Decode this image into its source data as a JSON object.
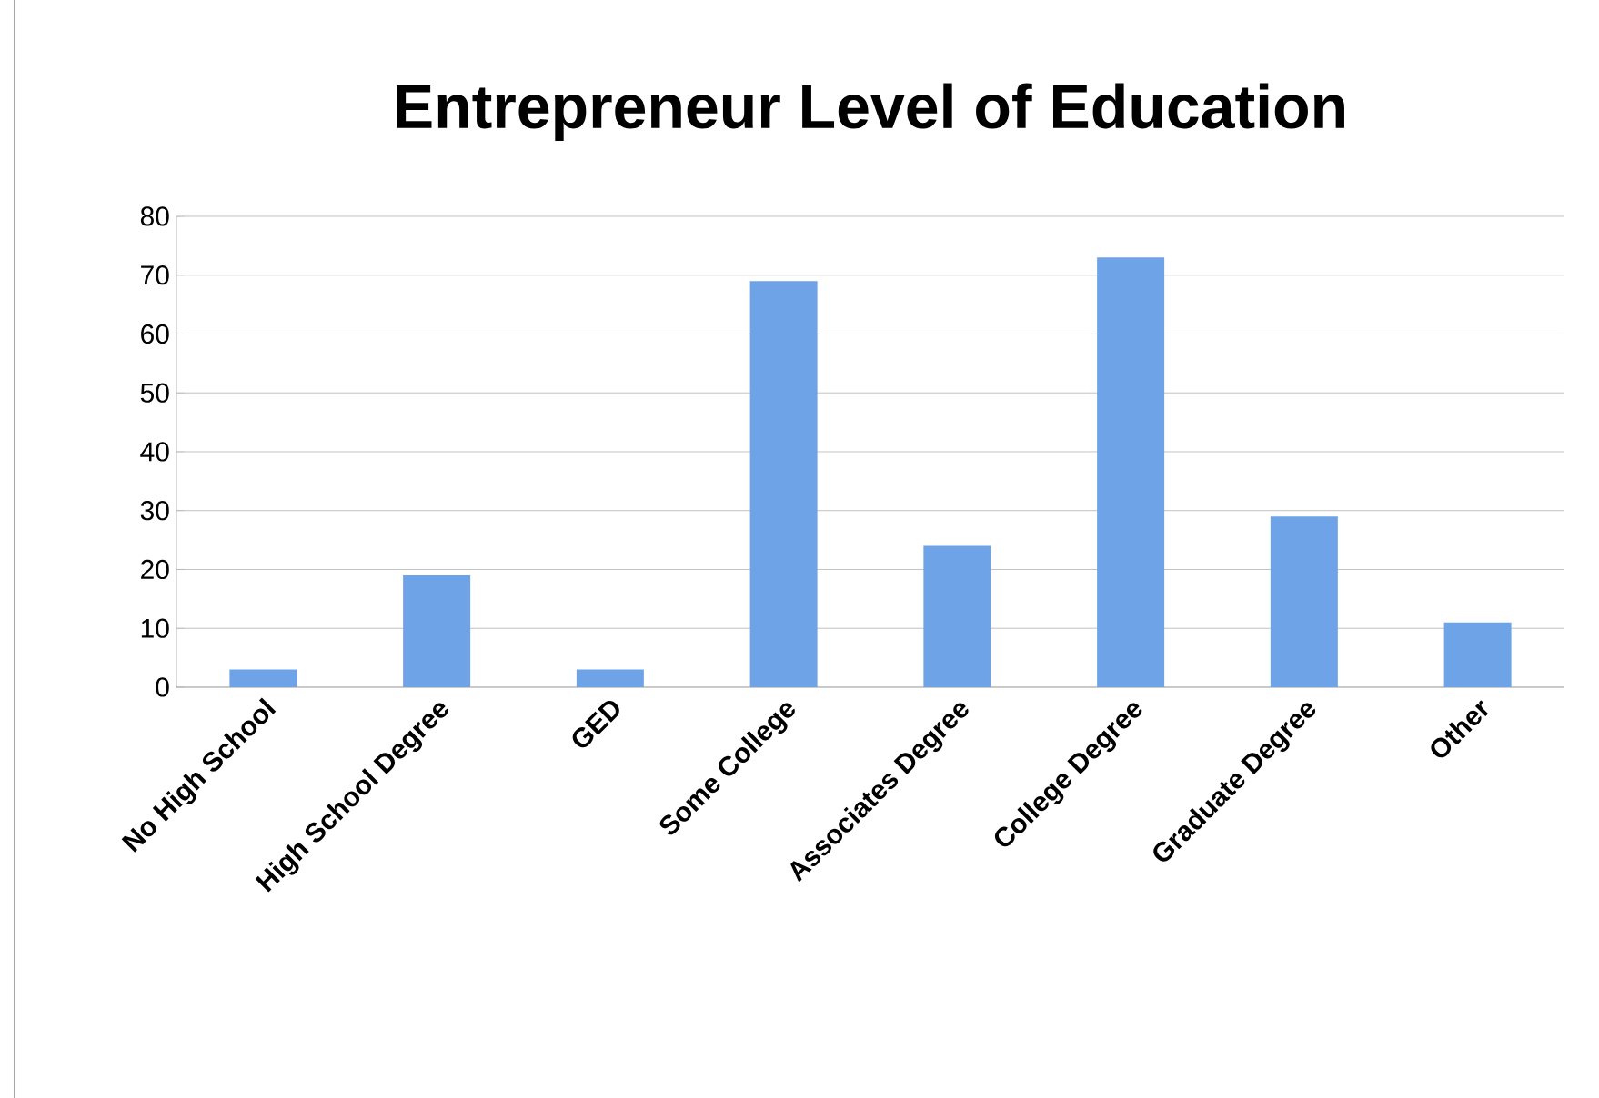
{
  "chart_data": {
    "type": "bar",
    "title": "Entrepreneur Level of Education",
    "categories": [
      "No High School",
      "High School Degree",
      "GED",
      "Some College",
      "Associates Degree",
      "College Degree",
      "Graduate Degree",
      "Other"
    ],
    "values": [
      3,
      19,
      3,
      69,
      24,
      73,
      29,
      11
    ],
    "color": "#6fa3e8",
    "ylim": [
      0,
      80
    ],
    "yticks": [
      0,
      10,
      20,
      30,
      40,
      50,
      60,
      70,
      80
    ],
    "grid": "y"
  }
}
